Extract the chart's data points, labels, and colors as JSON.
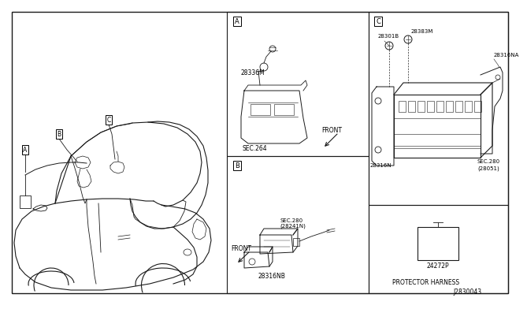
{
  "bg_color": "#ffffff",
  "line_color": "#1a1a1a",
  "fig_width": 6.4,
  "fig_height": 3.72,
  "diagram_id": "J2830043",
  "panel_A": [
    278,
    5,
    458,
    188
  ],
  "panel_B": [
    278,
    188,
    458,
    362
  ],
  "panel_C": [
    458,
    5,
    635,
    250
  ],
  "panel_D": [
    458,
    250,
    635,
    362
  ],
  "outer_border": [
    5,
    5,
    635,
    362
  ],
  "labels": {
    "panelA_tag": "A",
    "panelB_tag": "B",
    "panelC_tag": "C",
    "carA_tag": "A",
    "carB_tag": "B",
    "carC_tag": "C",
    "p28336M": "28336M",
    "sec264": "SEC.264",
    "frontA": "FRONT",
    "p28316NB": "28316NB",
    "sec280B": "SEC.280\n(28241N)",
    "frontB": "FRONT",
    "p28383M": "28383M",
    "p28301B": "28301B",
    "p28316NA": "28316NA",
    "p28316N": "28316N",
    "sec280C": "SEC.280\n(28051)",
    "p24272P": "24272P",
    "protector": "PROTECTOR HARNESS",
    "diagram_num": "J2830043"
  }
}
